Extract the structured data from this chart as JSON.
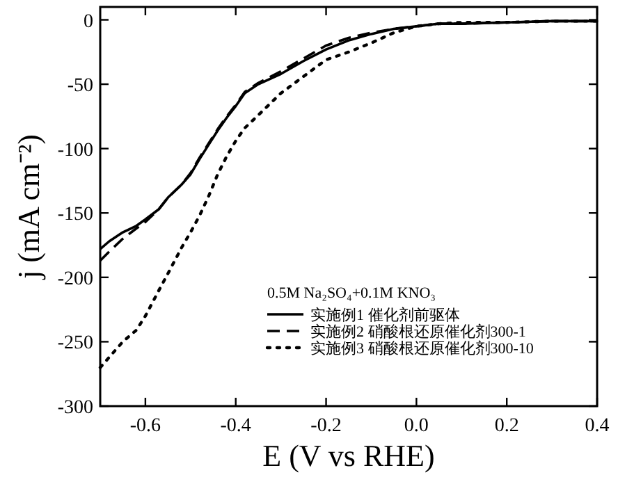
{
  "chart_data": {
    "type": "line",
    "xlabel": "E (V vs RHE)",
    "ylabel": "j (mA cm⁻²)",
    "legend_title": "0.5M Na₂SO₄+0.1M KNO₃",
    "xlim": [
      -0.7,
      0.4
    ],
    "ylim": [
      -300,
      10
    ],
    "xticks": [
      -0.6,
      -0.4,
      -0.2,
      {
        "value": 0,
        "label": "0.0"
      },
      0.2,
      0.4
    ],
    "yticks": [
      -300,
      -250,
      -200,
      -150,
      -100,
      -50,
      0
    ],
    "grid": false,
    "legend": "bottom right",
    "x": [
      -0.7,
      -0.68,
      -0.65,
      -0.62,
      -0.6,
      -0.57,
      -0.55,
      -0.52,
      -0.5,
      -0.48,
      -0.46,
      -0.44,
      -0.42,
      -0.4,
      -0.38,
      -0.35,
      -0.3,
      -0.25,
      -0.2,
      -0.15,
      -0.1,
      -0.05,
      0,
      0.05,
      0.1,
      0.2,
      0.3,
      0.4
    ],
    "series": [
      {
        "name": "实施例1 催化剂前驱体",
        "color": "#000000",
        "line_style": "solid",
        "values": [
          -178,
          -172,
          -165,
          -160,
          -155,
          -147,
          -138,
          -128,
          -120,
          -108,
          -97,
          -86,
          -76,
          -67,
          -57,
          -50,
          -42,
          -32,
          -23,
          -16,
          -11,
          -7,
          -5,
          -3,
          -3,
          -2,
          -1,
          -1
        ]
      },
      {
        "name": "实施例2 硝酸根还原催化剂300-1",
        "color": "#000000",
        "line_style": "dashed",
        "values": [
          -187,
          -180,
          -170,
          -162,
          -157,
          -147,
          -138,
          -128,
          -119,
          -107,
          -96,
          -85,
          -75,
          -66,
          -56,
          -49,
          -40,
          -30,
          -20,
          -14,
          -10,
          -7,
          -5,
          -3,
          -3,
          -2,
          -1,
          -1
        ]
      },
      {
        "name": "实施例3 硝酸根还原催化剂300-10",
        "color": "#000000",
        "line_style": "dotted",
        "values": [
          -270,
          -262,
          -250,
          -241,
          -230,
          -210,
          -197,
          -177,
          -165,
          -152,
          -137,
          -120,
          -106,
          -94,
          -84,
          -74,
          -57,
          -44,
          -31,
          -25,
          -18,
          -10,
          -5,
          -3,
          -2,
          -2,
          -1,
          -1
        ]
      }
    ]
  }
}
